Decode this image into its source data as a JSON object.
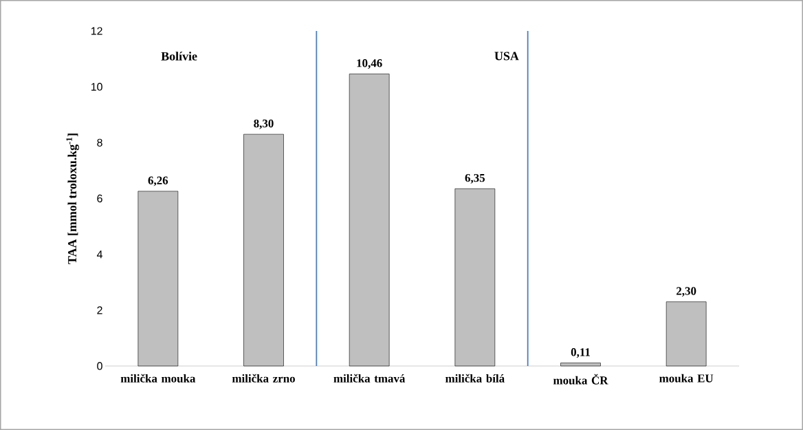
{
  "chart_data": {
    "type": "bar",
    "ylabel": "TAA [mmol troloxu.kg$^{-1}$]",
    "categories": [
      "milička mouka",
      "milička zrno",
      "milička tmavá",
      "milička bílá",
      "mouka ČR",
      "mouka EU"
    ],
    "values": [
      6.26,
      8.3,
      10.46,
      6.35,
      0.11,
      2.3
    ],
    "value_labels": [
      "6,26",
      "8,30",
      "10,46",
      "6,35",
      "0,11",
      "2,30"
    ],
    "color": "#bfbfbf",
    "ylim": [
      0,
      12
    ],
    "yticks": [
      0,
      2,
      4,
      6,
      8,
      10,
      12
    ],
    "annotations": [
      "Bolívie",
      "USA"
    ]
  }
}
